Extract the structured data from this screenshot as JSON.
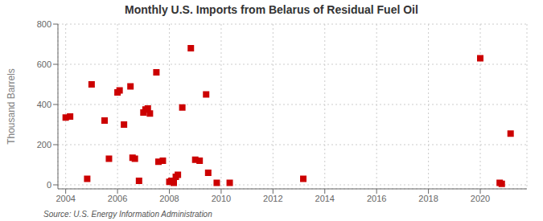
{
  "chart_data": {
    "type": "scatter",
    "title": "Monthly U.S. Imports from Belarus of Residual Fuel Oil",
    "ylabel": "Thousand Barrels",
    "annotations": [
      "Source: U.S. Energy Information Administration"
    ],
    "color": "#CC0000",
    "marker": "square",
    "grid": true,
    "xlim": [
      2003.7,
      2021.8
    ],
    "ylim": [
      -20,
      800
    ],
    "xticks": [
      2004,
      2006,
      2008,
      2010,
      2012,
      2014,
      2016,
      2018,
      2020
    ],
    "yticks": [
      0,
      200,
      400,
      600,
      800
    ],
    "x": [
      2004.0,
      2004.17,
      2004.83,
      2005.0,
      2005.5,
      2005.67,
      2006.0,
      2006.08,
      2006.25,
      2006.5,
      2006.58,
      2006.67,
      2006.83,
      2007.0,
      2007.08,
      2007.17,
      2007.25,
      2007.5,
      2007.58,
      2007.75,
      2008.0,
      2008.08,
      2008.17,
      2008.25,
      2008.33,
      2008.5,
      2008.83,
      2009.0,
      2009.17,
      2009.42,
      2009.5,
      2009.83,
      2010.33,
      2013.17,
      2020.0,
      2020.75,
      2020.83,
      2021.17
    ],
    "values": [
      335,
      340,
      30,
      500,
      320,
      130,
      460,
      470,
      300,
      490,
      135,
      130,
      20,
      360,
      375,
      380,
      355,
      560,
      115,
      120,
      15,
      20,
      10,
      40,
      50,
      385,
      680,
      125,
      120,
      450,
      60,
      10,
      10,
      30,
      630,
      10,
      5,
      255
    ]
  }
}
